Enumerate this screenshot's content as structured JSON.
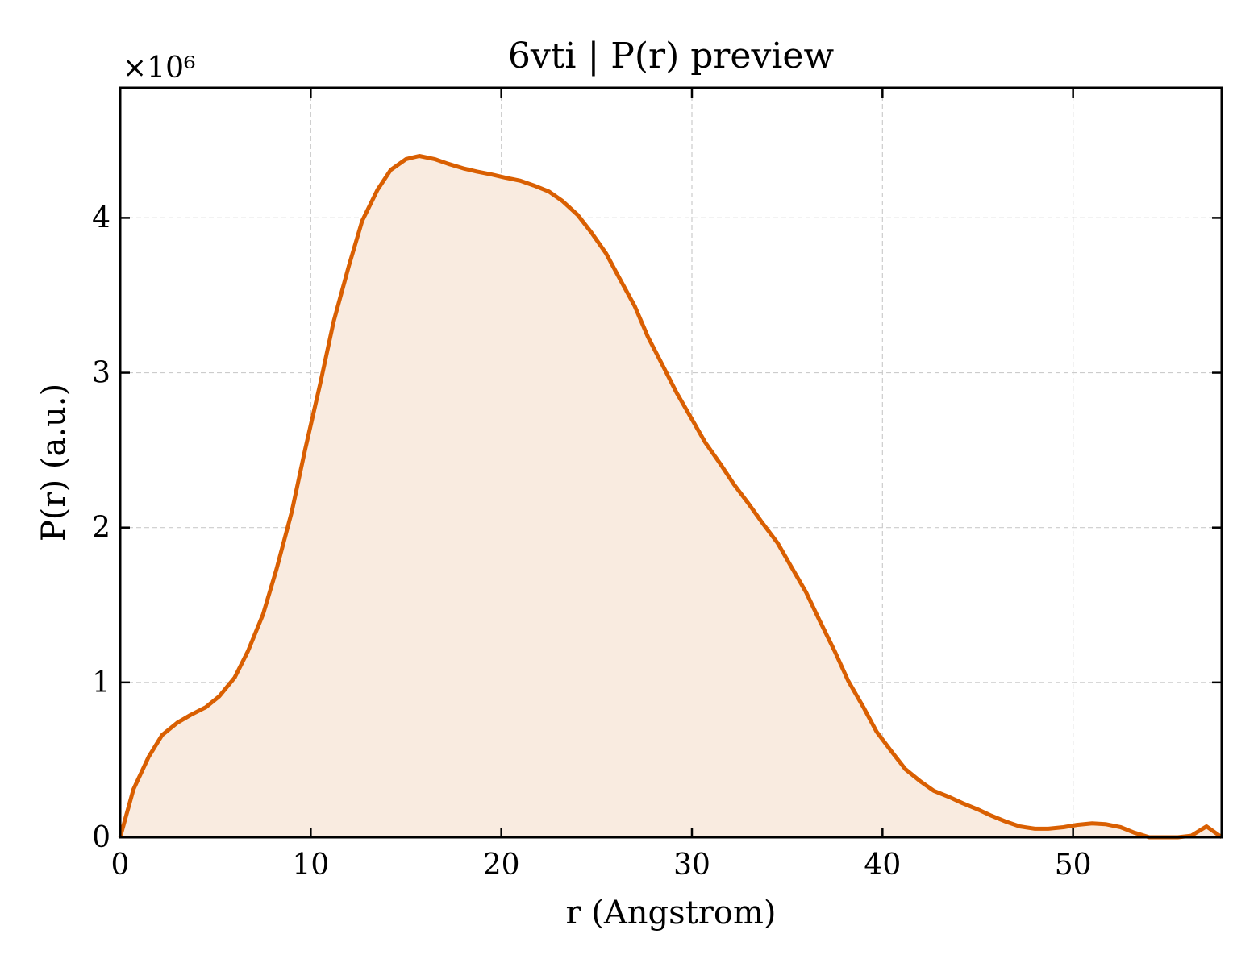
{
  "chart_data": {
    "type": "area",
    "title": "6vti | P(r) preview",
    "xlabel": "r (Angstrom)",
    "ylabel": "P(r) (a.u.)",
    "y_multiplier": "×10⁶",
    "xlim": [
      0,
      57.8
    ],
    "ylim": [
      0,
      4.84
    ],
    "xticks": [
      0,
      10,
      20,
      30,
      40,
      50
    ],
    "yticks": [
      0,
      1,
      2,
      3,
      4
    ],
    "grid": true,
    "line_color": "#d95f02",
    "fill_color": "#f9ebe0",
    "series": [
      {
        "x": [
          0,
          0.7,
          1.5,
          2.2,
          3.0,
          3.7,
          4.5,
          5.2,
          6.0,
          6.7,
          7.5,
          8.2,
          9.0,
          9.7,
          10.5,
          11.2,
          12.0,
          12.7,
          13.5,
          14.2,
          15.0,
          15.7,
          16.5,
          17.2,
          18.0,
          18.7,
          19.5,
          20.2,
          21.0,
          21.7,
          22.5,
          23.2,
          24.0,
          24.7,
          25.5,
          26.2,
          27.0,
          27.7,
          28.5,
          29.2,
          30.0,
          30.7,
          31.5,
          32.2,
          33.0,
          33.7,
          34.5,
          35.2,
          36.0,
          36.7,
          37.5,
          38.2,
          39.0,
          39.7,
          40.5,
          41.2,
          42.0,
          42.7,
          43.5,
          44.2,
          45.0,
          45.7,
          46.5,
          47.2,
          48.0,
          48.7,
          49.5,
          50.2,
          51.0,
          51.7,
          52.5,
          53.2,
          54.0,
          54.7,
          55.5,
          56.2,
          57.0,
          57.8
        ],
        "y": [
          0,
          0.31,
          0.52,
          0.66,
          0.74,
          0.79,
          0.84,
          0.91,
          1.03,
          1.2,
          1.44,
          1.73,
          2.1,
          2.5,
          2.93,
          3.33,
          3.69,
          3.98,
          4.18,
          4.31,
          4.38,
          4.4,
          4.38,
          4.35,
          4.32,
          4.3,
          4.28,
          4.26,
          4.24,
          4.21,
          4.17,
          4.11,
          4.02,
          3.91,
          3.77,
          3.61,
          3.43,
          3.23,
          3.04,
          2.87,
          2.7,
          2.55,
          2.41,
          2.28,
          2.15,
          2.03,
          1.9,
          1.75,
          1.58,
          1.4,
          1.2,
          1.01,
          0.84,
          0.68,
          0.55,
          0.44,
          0.36,
          0.3,
          0.26,
          0.22,
          0.18,
          0.14,
          0.1,
          0.07,
          0.055,
          0.055,
          0.065,
          0.08,
          0.09,
          0.085,
          0.065,
          0.03,
          0.0,
          0.0,
          0.0,
          0.01,
          0.07,
          0.0
        ]
      }
    ]
  }
}
